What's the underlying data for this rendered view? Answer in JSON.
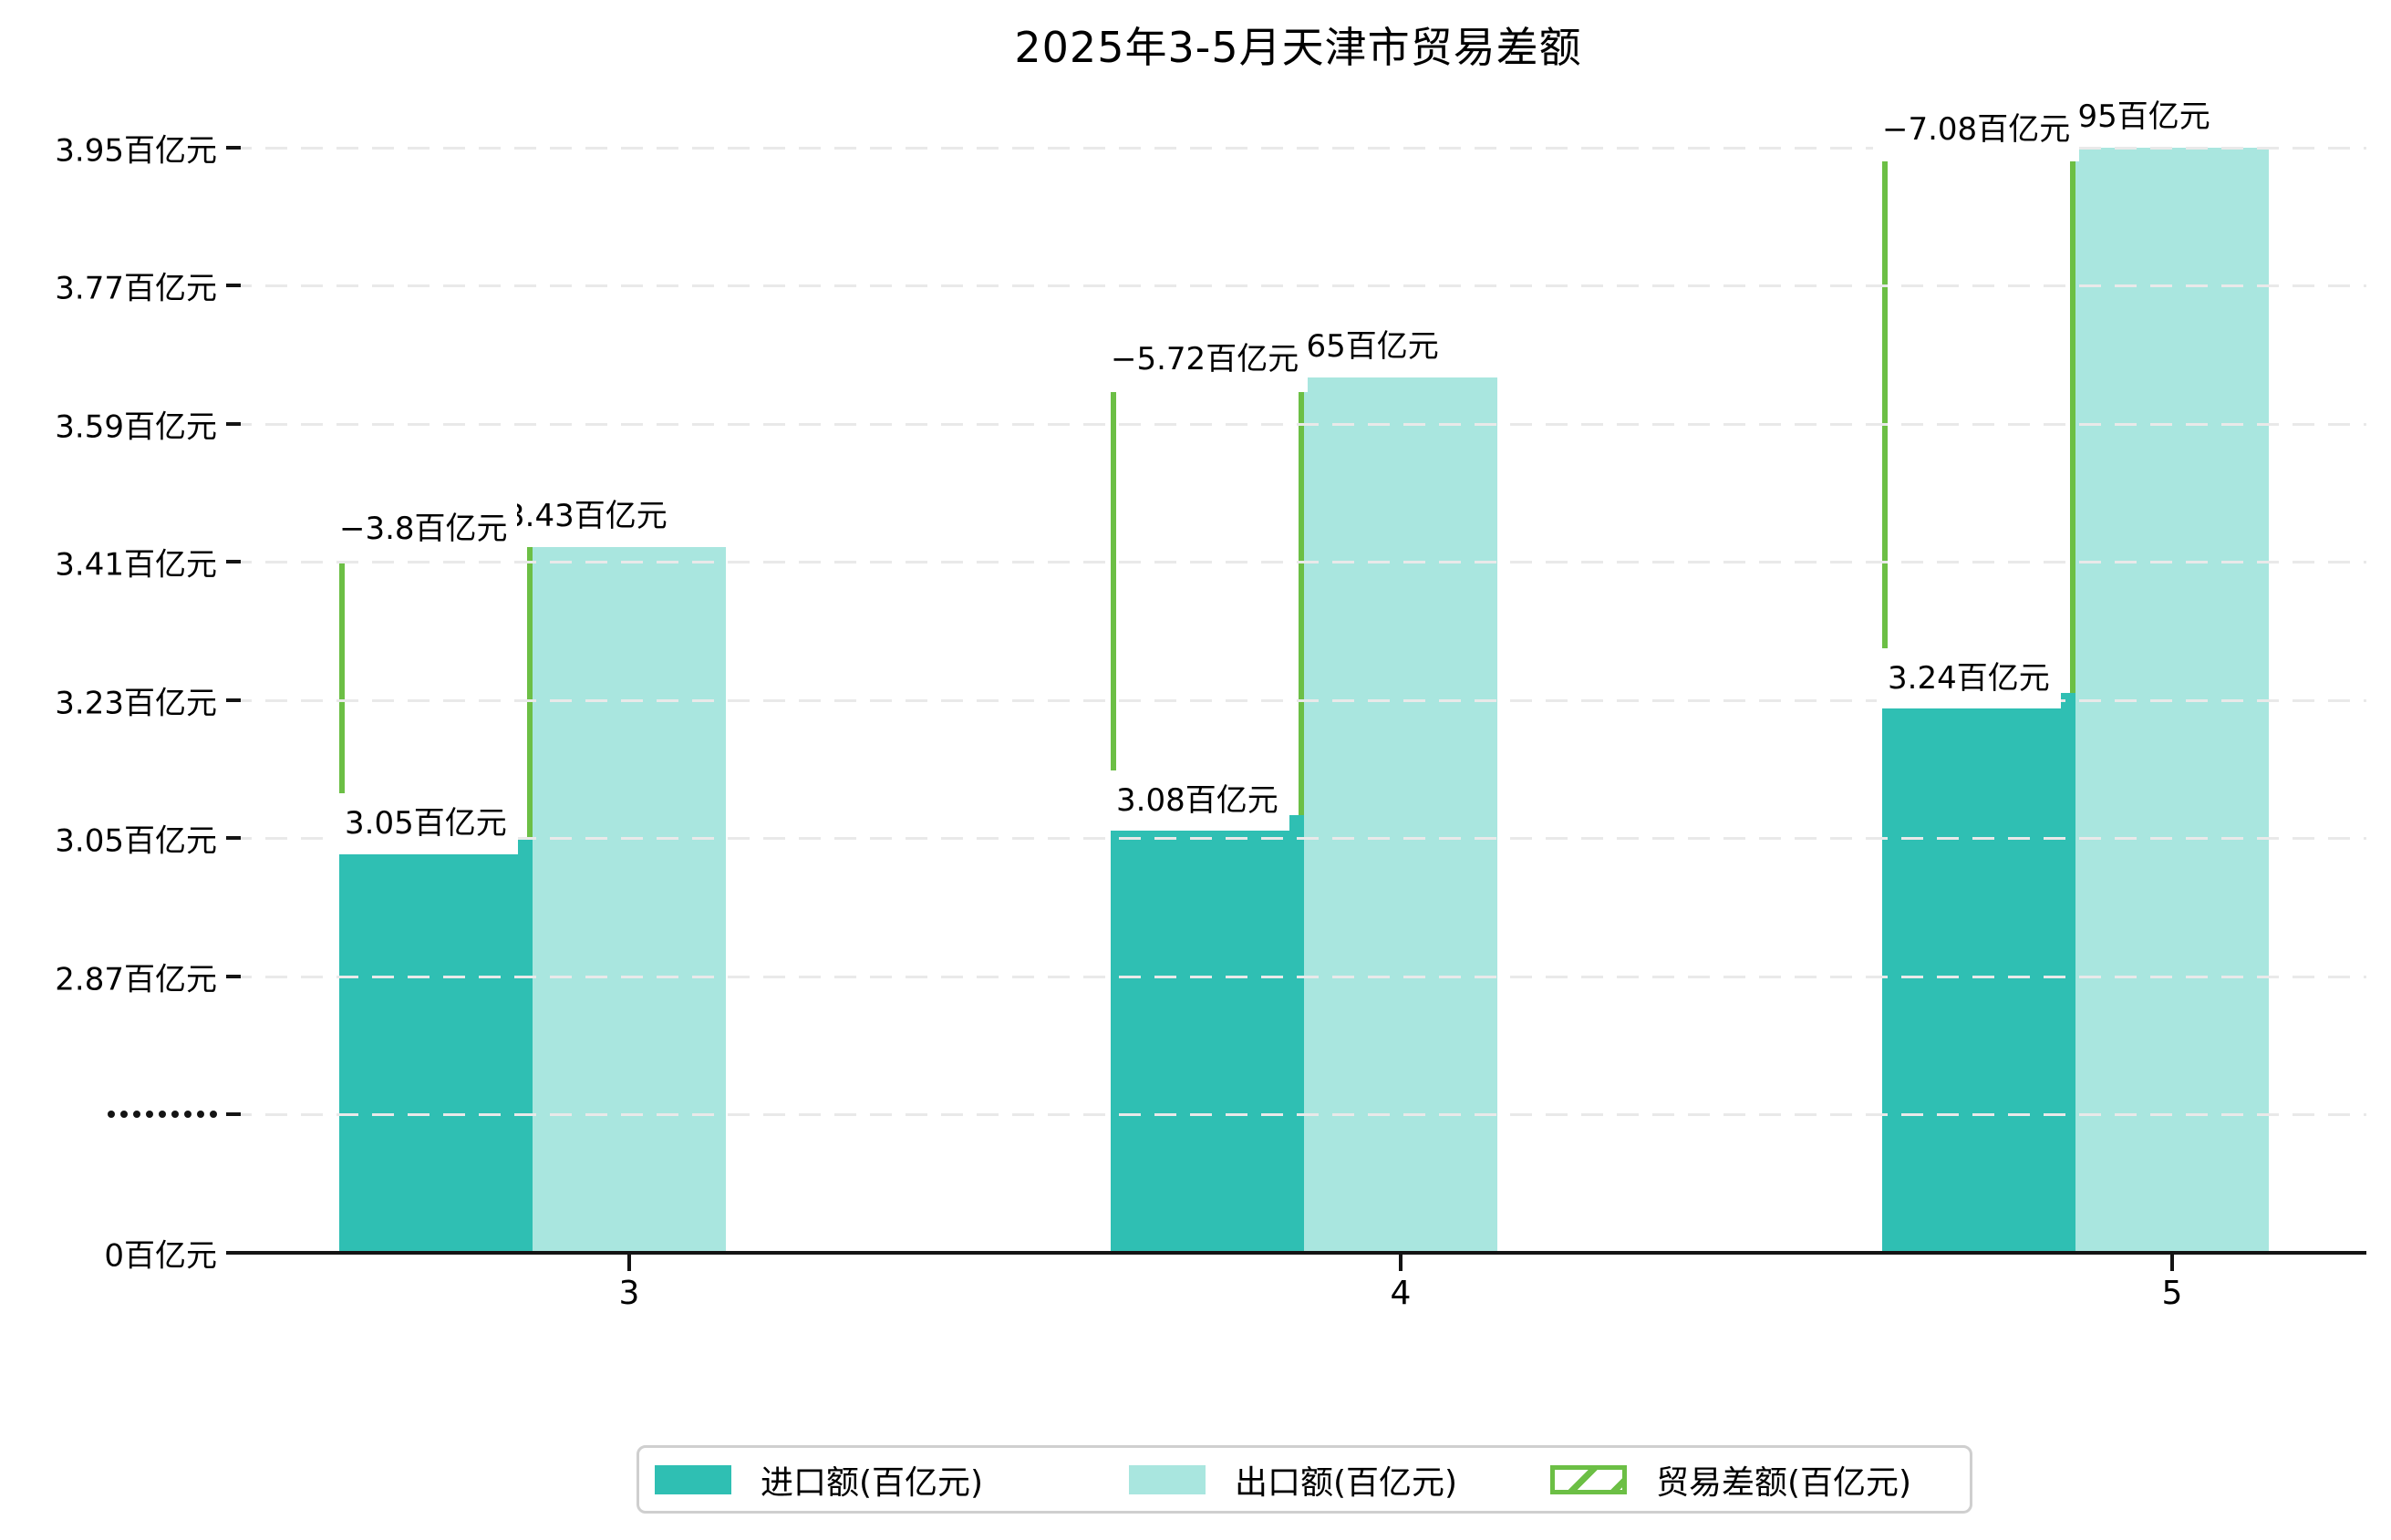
{
  "chart_data": {
    "type": "bar",
    "title": "2025年3-5月天津市贸易差额",
    "unit": "百亿元",
    "categories": [
      "3",
      "4",
      "5"
    ],
    "series": [
      {
        "name": "进口额(百亿元)",
        "role": "import",
        "values": [
          3.05,
          3.08,
          3.24
        ],
        "data_labels": [
          "3.05百亿元",
          "3.08百亿元",
          "3.24百亿元"
        ],
        "color": "#2fbfb3"
      },
      {
        "name": "出口额(百亿元)",
        "role": "export",
        "values": [
          3.43,
          3.65,
          3.95
        ],
        "data_labels": [
          "3.43百亿元",
          "3.65百亿元",
          "3.95百亿元"
        ],
        "color": "#a9e6df"
      },
      {
        "name": "贸易差额(百亿元)",
        "role": "trade-balance",
        "values": [
          -3.8,
          -5.72,
          -7.08
        ],
        "data_labels": [
          "−3.8百亿元",
          "−5.72百亿元",
          "−7.08百亿元"
        ],
        "color": "#6cbf45",
        "style": "hatched"
      }
    ],
    "y_axis": {
      "grid": true,
      "axis_break": true,
      "ticks": [
        {
          "label": "3.95百亿元",
          "value": 3.95
        },
        {
          "label": "3.77百亿元",
          "value": 3.77
        },
        {
          "label": "3.59百亿元",
          "value": 3.59
        },
        {
          "label": "3.41百亿元",
          "value": 3.41
        },
        {
          "label": "3.23百亿元",
          "value": 3.23
        },
        {
          "label": "3.05百亿元",
          "value": 3.05
        },
        {
          "label": "2.87百亿元",
          "value": 2.87
        },
        {
          "label": "·········",
          "value": null,
          "axis_break": true
        },
        {
          "label": "0百亿元",
          "value": 0
        }
      ]
    },
    "legend_position": "bottom",
    "colors": {
      "grid": "#e9e9e9",
      "axis": "#141414",
      "legend_border": "#cfcfcf",
      "label_background": "#ffffff"
    }
  }
}
